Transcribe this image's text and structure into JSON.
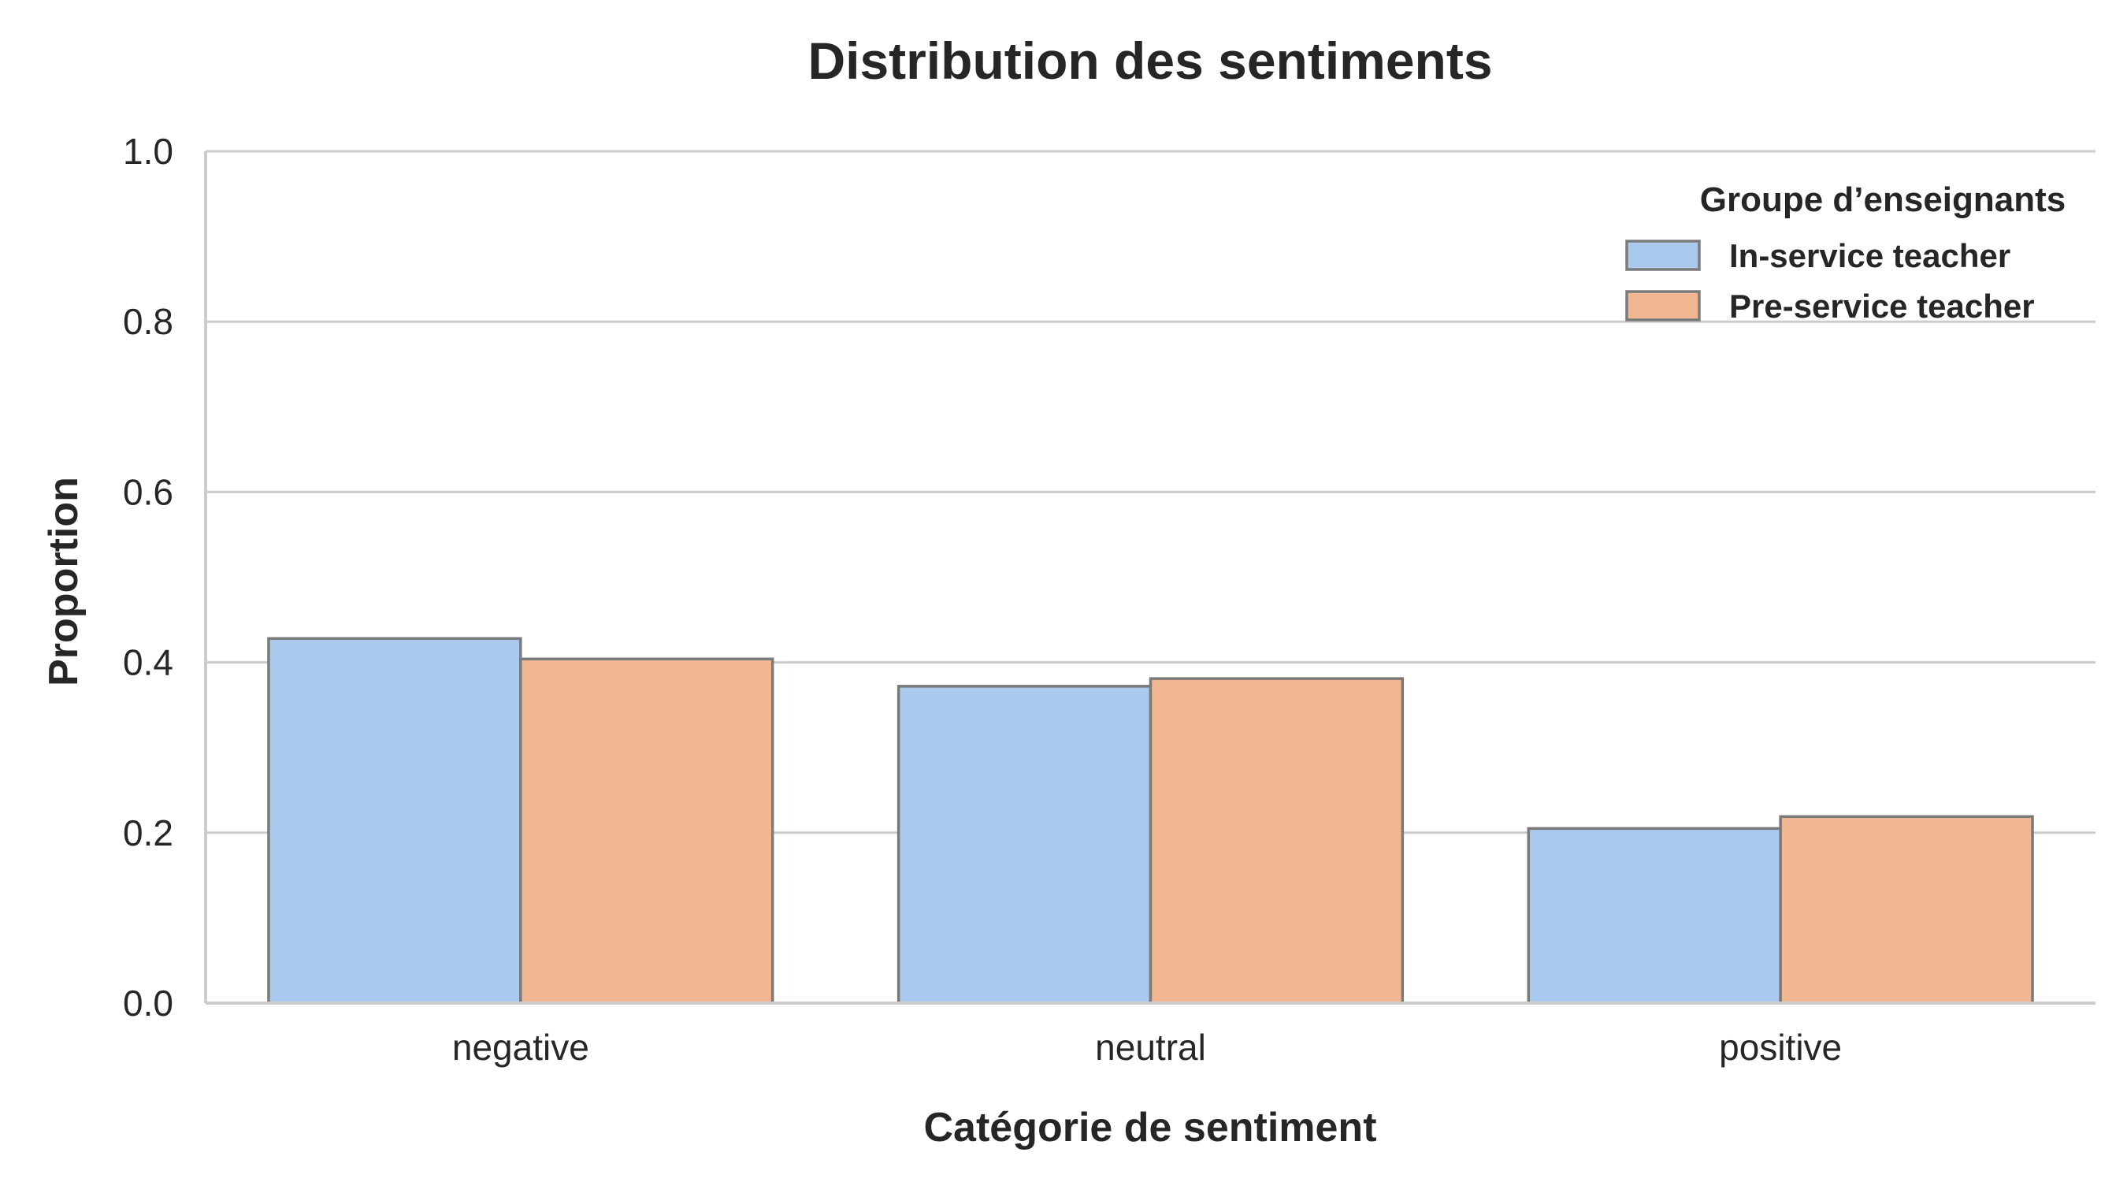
{
  "chart_data": {
    "type": "bar",
    "title": "Distribution des sentiments",
    "xlabel": "Catégorie de sentiment",
    "ylabel": "Proportion",
    "categories": [
      "negative",
      "neutral",
      "positive"
    ],
    "series": [
      {
        "name": "In-service teacher",
        "values": [
          0.428,
          0.372,
          0.205
        ],
        "color": "#abc9ec"
      },
      {
        "name": "Pre-service teacher",
        "values": [
          0.404,
          0.381,
          0.219
        ],
        "color": "#f0b792"
      }
    ],
    "ylim": [
      0,
      1.0
    ],
    "yticks": [
      "0.0",
      "0.2",
      "0.4",
      "0.6",
      "0.8",
      "1.0"
    ],
    "grid": "horizontal",
    "legend": {
      "title": "Groupe d’enseignants",
      "placement": "top-right"
    },
    "colors": {
      "edge": "#7a7a7a",
      "grid": "#cccccc",
      "text": "#262626"
    }
  }
}
